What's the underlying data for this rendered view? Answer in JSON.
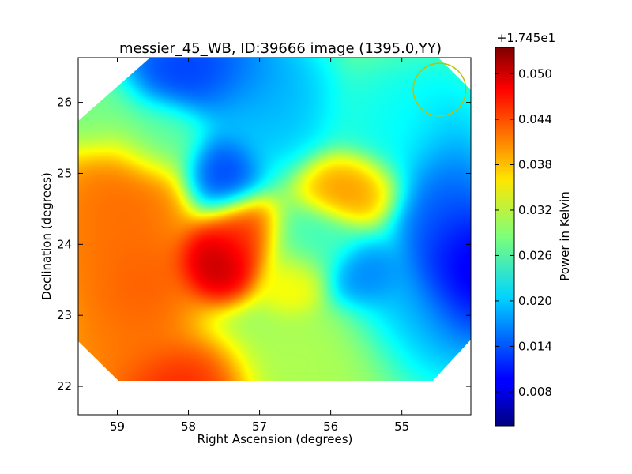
{
  "chart_data": {
    "type": "heatmap",
    "title": "messier_45_WB, ID:39666 image (1395.0,YY)",
    "xlabel": "Right Ascension (degrees)",
    "ylabel": "Declination (degrees)",
    "xlim": [
      59.55,
      54.03
    ],
    "ylim": [
      21.6,
      26.63
    ],
    "x_ticks": [
      59,
      58,
      57,
      56,
      55
    ],
    "y_ticks": [
      22,
      23,
      24,
      25,
      26
    ],
    "colorbar": {
      "label": "Power in Kelvin",
      "offset_text": "+1.745e1",
      "min": 0.0035,
      "max": 0.0535,
      "ticks": [
        "0.008",
        "0.014",
        "0.020",
        "0.026",
        "0.032",
        "0.038",
        "0.044",
        "0.050"
      ],
      "colormap": "jet"
    },
    "background_level": 0.029,
    "blobs": [
      {
        "ra": 57.6,
        "dec": 23.75,
        "level": 0.053,
        "sigma_ra": 0.3,
        "sigma_dec": 0.28
      },
      {
        "ra": 57.25,
        "dec": 24.1,
        "level": 0.046,
        "sigma_ra": 0.3,
        "sigma_dec": 0.3
      },
      {
        "ra": 58.7,
        "dec": 23.4,
        "level": 0.044,
        "sigma_ra": 0.45,
        "sigma_dec": 0.5
      },
      {
        "ra": 58.9,
        "dec": 24.6,
        "level": 0.043,
        "sigma_ra": 0.5,
        "sigma_dec": 0.5
      },
      {
        "ra": 59.35,
        "dec": 23.9,
        "level": 0.042,
        "sigma_ra": 0.4,
        "sigma_dec": 0.6
      },
      {
        "ra": 58.2,
        "dec": 22.0,
        "level": 0.047,
        "sigma_ra": 0.5,
        "sigma_dec": 0.35
      },
      {
        "ra": 59.0,
        "dec": 22.6,
        "level": 0.042,
        "sigma_ra": 0.45,
        "sigma_dec": 0.4
      },
      {
        "ra": 55.75,
        "dec": 24.8,
        "level": 0.041,
        "sigma_ra": 0.35,
        "sigma_dec": 0.25
      },
      {
        "ra": 56.5,
        "dec": 23.5,
        "level": 0.036,
        "sigma_ra": 0.25,
        "sigma_dec": 0.25
      },
      {
        "ra": 57.55,
        "dec": 25.0,
        "level": 0.011,
        "sigma_ra": 0.28,
        "sigma_dec": 0.3
      },
      {
        "ra": 57.9,
        "dec": 26.45,
        "level": 0.011,
        "sigma_ra": 0.6,
        "sigma_dec": 0.35
      },
      {
        "ra": 56.9,
        "dec": 26.0,
        "level": 0.018,
        "sigma_ra": 0.5,
        "sigma_dec": 0.5
      },
      {
        "ra": 55.5,
        "dec": 23.55,
        "level": 0.015,
        "sigma_ra": 0.3,
        "sigma_dec": 0.25
      },
      {
        "ra": 54.1,
        "dec": 23.6,
        "level": 0.005,
        "sigma_ra": 0.35,
        "sigma_dec": 0.5
      },
      {
        "ra": 54.4,
        "dec": 24.4,
        "level": 0.013,
        "sigma_ra": 0.35,
        "sigma_dec": 0.8
      },
      {
        "ra": 54.8,
        "dec": 22.9,
        "level": 0.018,
        "sigma_ra": 0.5,
        "sigma_dec": 0.45
      },
      {
        "ra": 54.9,
        "dec": 25.7,
        "level": 0.022,
        "sigma_ra": 0.5,
        "sigma_dec": 0.45
      },
      {
        "ra": 56.3,
        "dec": 24.0,
        "level": 0.025,
        "sigma_ra": 0.35,
        "sigma_dec": 0.3
      },
      {
        "ra": 56.0,
        "dec": 22.4,
        "level": 0.031,
        "sigma_ra": 0.6,
        "sigma_dec": 0.4
      },
      {
        "ra": 59.3,
        "dec": 25.9,
        "level": 0.028,
        "sigma_ra": 0.35,
        "sigma_dec": 0.35
      },
      {
        "ra": 58.4,
        "dec": 25.5,
        "level": 0.026,
        "sigma_ra": 0.35,
        "sigma_dec": 0.3
      }
    ],
    "beam_circle": {
      "ra": 54.47,
      "dec": 26.18,
      "radius_deg": 0.37,
      "color": "#bfbf00"
    }
  }
}
